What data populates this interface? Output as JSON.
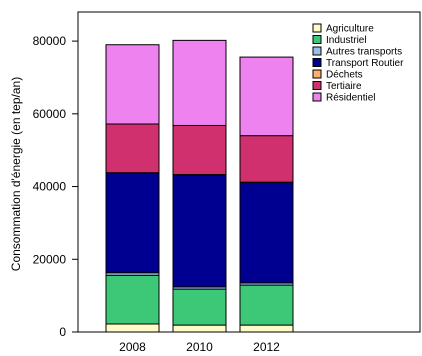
{
  "chart_data": {
    "type": "bar",
    "stacked": true,
    "categories": [
      "2008",
      "2010",
      "2012"
    ],
    "ylabel": "Consommation d'énergie (en tep/an)",
    "xlabel": "",
    "ylim": [
      0,
      88000
    ],
    "yticks": [
      0,
      20000,
      40000,
      60000,
      80000
    ],
    "grid": false,
    "legend_position": "top-right",
    "series": [
      {
        "name": "Agriculture",
        "color": "#fffbc8",
        "values": [
          2200,
          1900,
          1900
        ]
      },
      {
        "name": "Industriel",
        "color": "#3dc878",
        "values": [
          13400,
          9900,
          11000
        ]
      },
      {
        "name": "Autres transports",
        "color": "#9bbfe6",
        "values": [
          700,
          600,
          600
        ]
      },
      {
        "name": "Transport Routier",
        "color": "#000090",
        "values": [
          27400,
          30800,
          27600
        ]
      },
      {
        "name": "Déchets",
        "color": "#ffb06a",
        "values": [
          100,
          100,
          100
        ]
      },
      {
        "name": "Tertiaire",
        "color": "#d1306e",
        "values": [
          13400,
          13500,
          12800
        ]
      },
      {
        "name": "Résidentiel",
        "color": "#ee82ee",
        "values": [
          21800,
          23400,
          21600
        ]
      }
    ]
  }
}
